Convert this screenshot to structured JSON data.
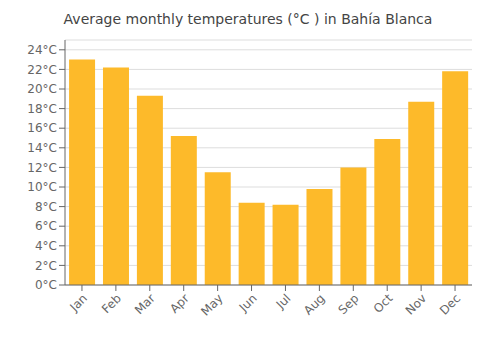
{
  "chart_data": {
    "type": "bar",
    "title": "Average monthly temperatures (°C ) in Bahía Blanca",
    "categories": [
      "Jan",
      "Feb",
      "Mar",
      "Apr",
      "May",
      "Jun",
      "Jul",
      "Aug",
      "Sep",
      "Oct",
      "Nov",
      "Dec"
    ],
    "values": [
      23.0,
      22.2,
      19.3,
      15.2,
      11.5,
      8.4,
      8.2,
      9.8,
      12.0,
      14.9,
      18.7,
      21.8
    ],
    "color": "#FDBA2A",
    "ylim": [
      0,
      25
    ],
    "yticks": [
      {
        "value": 0,
        "label": "0°C"
      },
      {
        "value": 2,
        "label": "2°C"
      },
      {
        "value": 4,
        "label": "4°C"
      },
      {
        "value": 6,
        "label": "6°C"
      },
      {
        "value": 8,
        "label": "8°C"
      },
      {
        "value": 10,
        "label": "10°C"
      },
      {
        "value": 12,
        "label": "12°C"
      },
      {
        "value": 14,
        "label": "14°C"
      },
      {
        "value": 16,
        "label": "16°C"
      },
      {
        "value": 18,
        "label": "18°C"
      },
      {
        "value": 20,
        "label": "20°C"
      },
      {
        "value": 22,
        "label": "22°C"
      },
      {
        "value": 24,
        "label": "24°C"
      }
    ],
    "grid": true
  }
}
